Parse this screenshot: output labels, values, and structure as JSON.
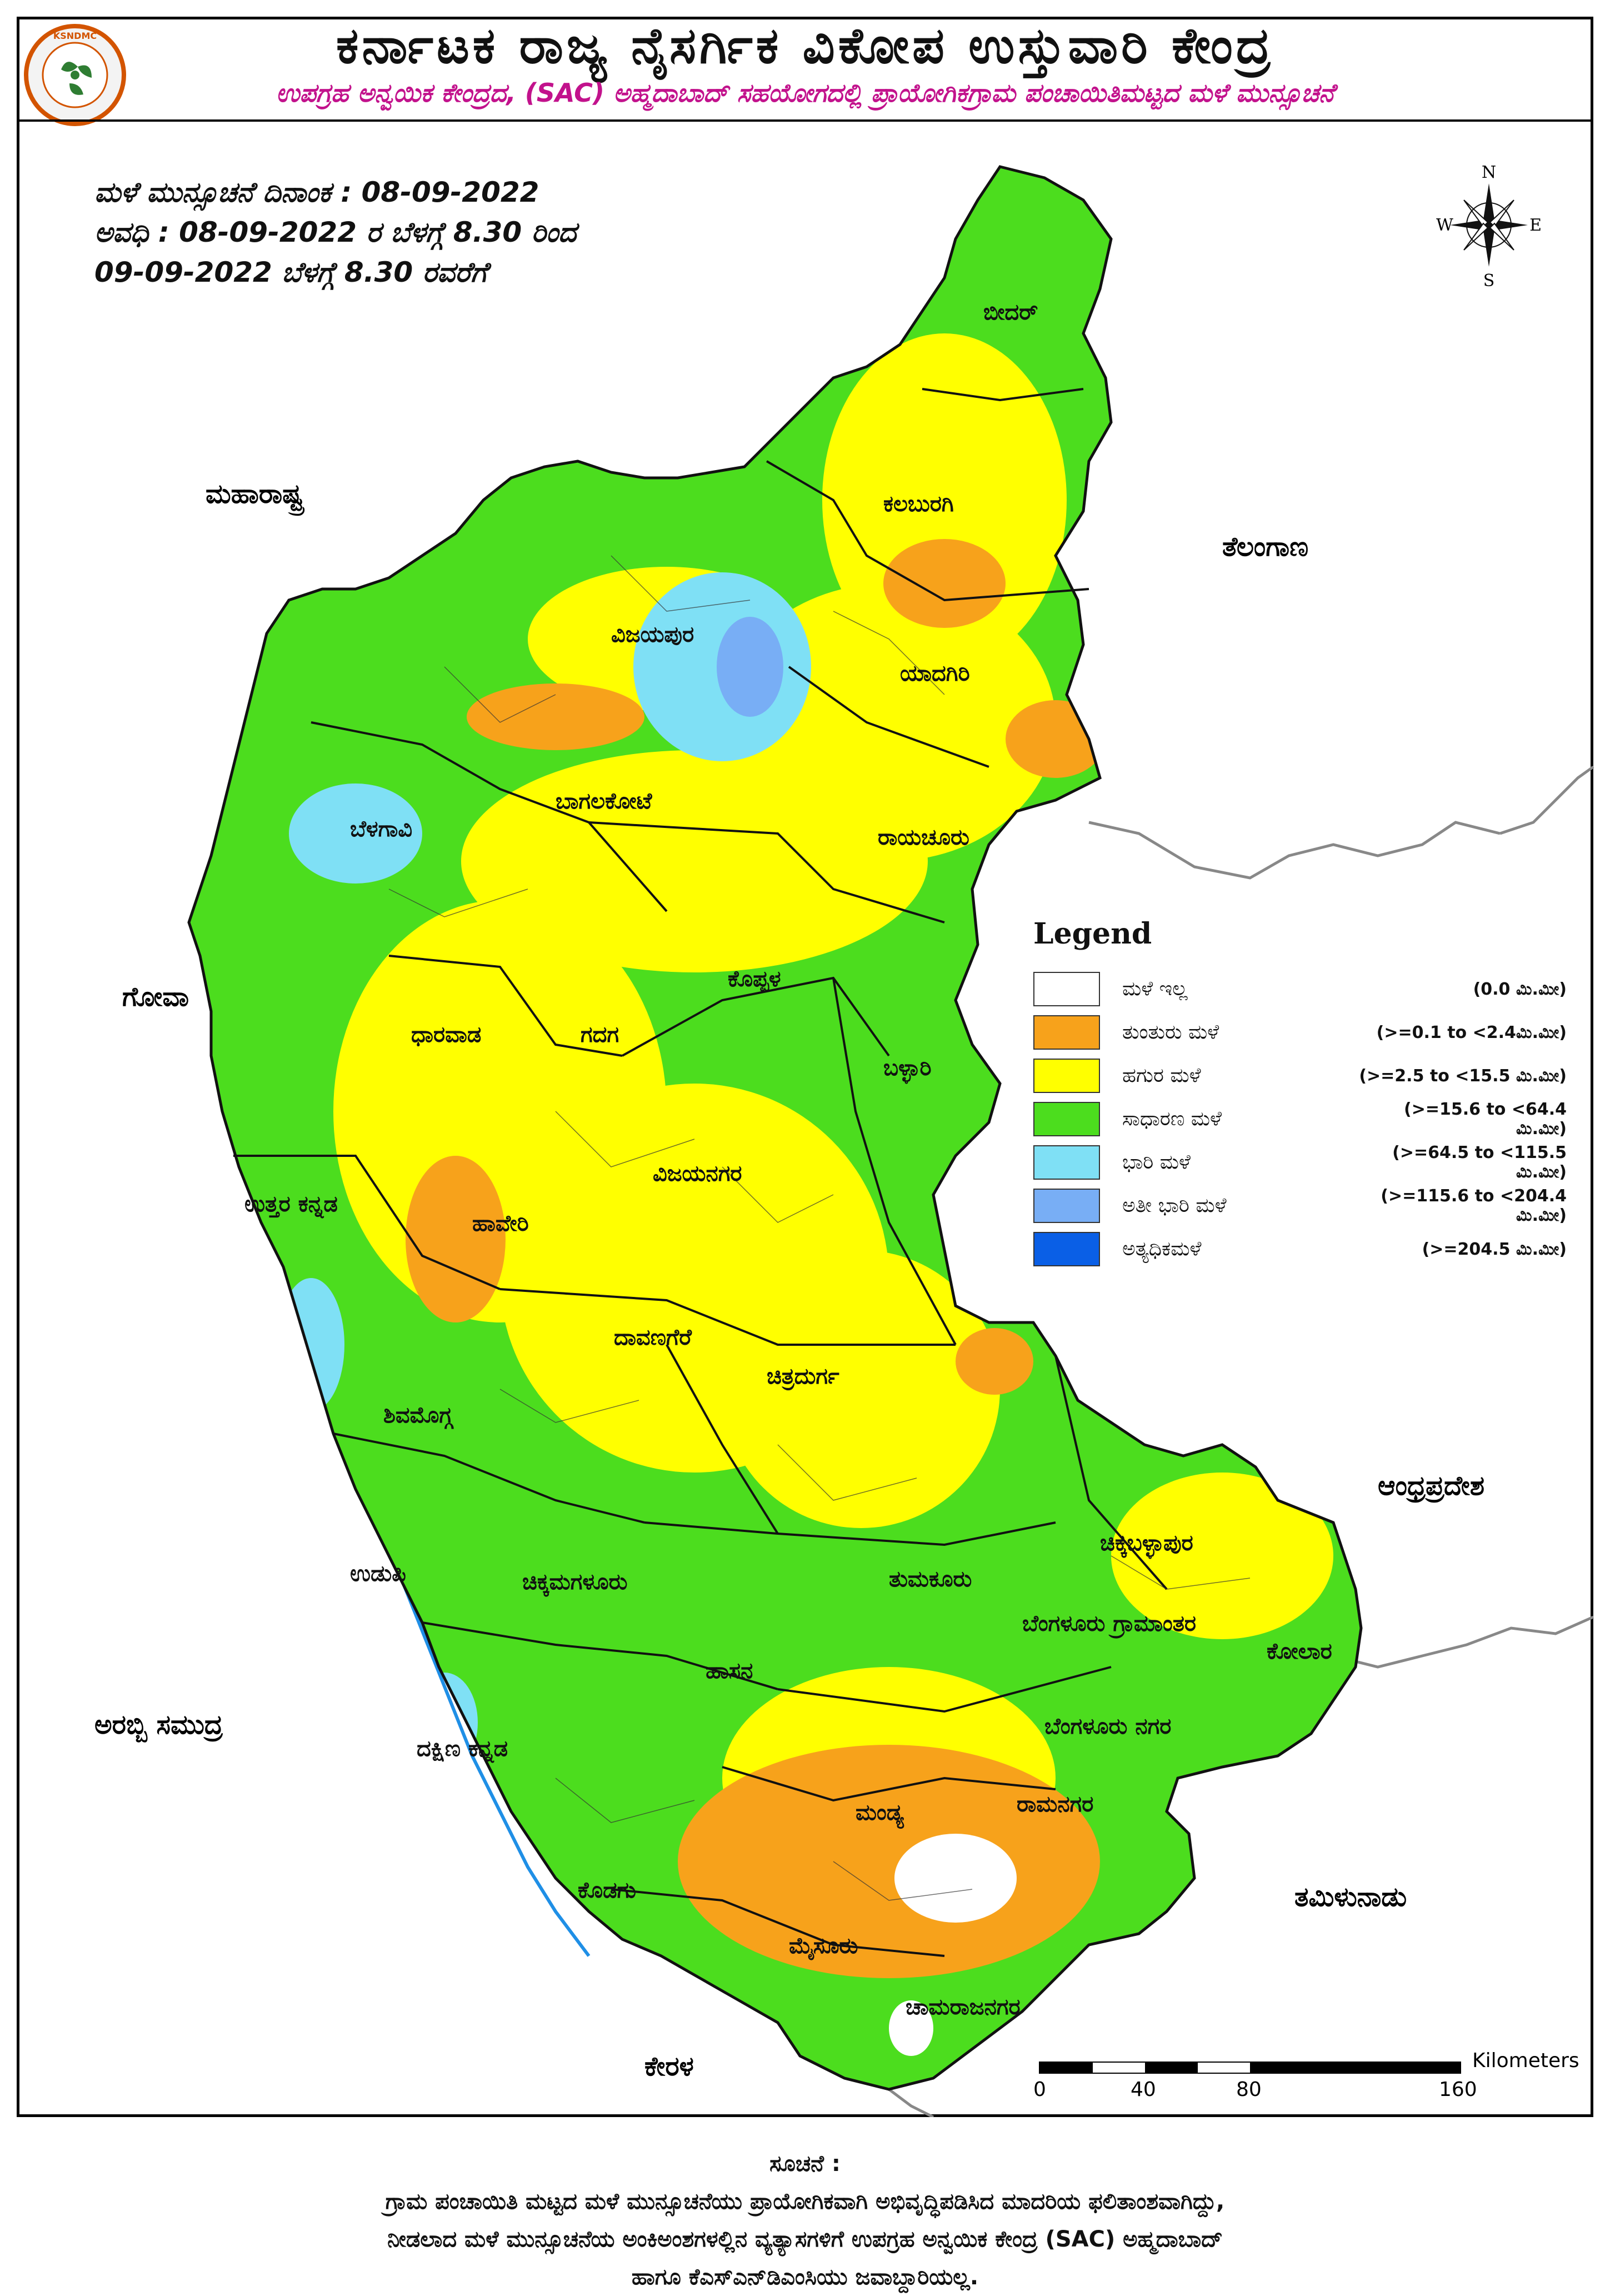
{
  "header": {
    "title": "ಕರ್ನಾಟಕ ರಾಜ್ಯ ನೈಸರ್ಗಿಕ ವಿಕೋಪ ಉಸ್ತುವಾರಿ ಕೇಂದ್ರ",
    "subtitle": "ಉಪಗ್ರಹ ಅನ್ವಯಿಕ ಕೇಂದ್ರದ, (SAC) ಅಹ್ಮದಾಬಾದ್  ಸಹಯೋಗದಲ್ಲಿ  ಪ್ರಾಯೋಗಿಕಗ್ರಾಮ ಪಂಚಾಯಿತಿಮಟ್ಟದ ಮಳೆ ಮುನ್ಸೂಚನೆ",
    "logo_text": "KSNDMC"
  },
  "forecast": {
    "line1": "ಮಳೆ ಮುನ್ಸೂಚನೆ    ದಿನಾಂಕ : 08-09-2022",
    "line2": "ಅವಧಿ : 08-09-2022  ರ ಬೆಳಗ್ಗೆ     8.30  ರಿಂದ",
    "line3": "09-09-2022     ಬೆಳಗ್ಗೆ     8.30  ರವರೆಗೆ"
  },
  "neighbors": {
    "maharashtra": "ಮಹಾರಾಷ್ಟ್ರ",
    "telangana": "ತೆಲಂಗಾಣ",
    "goa": "ಗೋವಾ",
    "andhra": "ಆಂಧ್ರಪ್ರದೇಶ",
    "arabian_sea": "ಅರಬ್ಬಿ  ಸಮುದ್ರ",
    "tamilnadu": "ತಮಿಳುನಾಡು",
    "kerala": "ಕೇರಳ"
  },
  "districts": [
    {
      "name": "ಬೀದರ್"
    },
    {
      "name": "ಕಲಬುರಗಿ"
    },
    {
      "name": "ವಿಜಯಪುರ"
    },
    {
      "name": "ಯಾದಗಿರಿ"
    },
    {
      "name": "ಬಾಗಲಕೋಟೆ"
    },
    {
      "name": "ಬೆಳಗಾವಿ"
    },
    {
      "name": "ರಾಯಚೂರು"
    },
    {
      "name": "ಕೊಪ್ಪಳ"
    },
    {
      "name": "ಧಾರವಾಡ"
    },
    {
      "name": "ಗದಗ"
    },
    {
      "name": "ಬಳ್ಳಾರಿ"
    },
    {
      "name": "ವಿಜಯನಗರ"
    },
    {
      "name": "ಉತ್ತರ  ಕನ್ನಡ"
    },
    {
      "name": "ಹಾವೇರಿ"
    },
    {
      "name": "ದಾವಣಗೆರೆ"
    },
    {
      "name": "ಚಿತ್ರದುರ್ಗ"
    },
    {
      "name": "ಶಿವಮೊಗ್ಗ"
    },
    {
      "name": "ಚಿಕ್ಕಬಳ್ಳಾಪುರ"
    },
    {
      "name": "ಉಡುಪಿ"
    },
    {
      "name": "ಚಿಕ್ಕಮಗಳೂರು"
    },
    {
      "name": "ತುಮಕೂರು"
    },
    {
      "name": "ಬೆಂಗಳೂರು ಗ್ರಾಮಾಂತರ"
    },
    {
      "name": "ಕೋಲಾರ"
    },
    {
      "name": "ಹಾಸನ"
    },
    {
      "name": "ಬೆಂಗಳೂರು ನಗರ"
    },
    {
      "name": "ದಕ್ಷಿಣ ಕನ್ನಡ"
    },
    {
      "name": "ಮಂಡ್ಯ"
    },
    {
      "name": "ರಾಮನಗರ"
    },
    {
      "name": "ಕೊಡಗು"
    },
    {
      "name": "ಮೈಸೂರು"
    },
    {
      "name": "ಚಾಮರಾಜನಗರ"
    }
  ],
  "legend": {
    "title": "Legend",
    "items": [
      {
        "label": "ಮಳೆ ಇಲ್ಲ",
        "range": "(0.0 ಮಿ.ಮೀ)",
        "color": "#ffffff"
      },
      {
        "label": "ತುಂತುರು ಮಳೆ",
        "range": "(>=0.1 to <2.4ಮಿ.ಮೀ)",
        "color": "#f7a21b"
      },
      {
        "label": "ಹಗುರ ಮಳೆ",
        "range": "(>=2.5 to <15.5 ಮಿ.ಮೀ)",
        "color": "#ffff00"
      },
      {
        "label": "ಸಾಧಾರಣ ಮಳೆ",
        "range": "(>=15.6 to <64.4 ಮಿ.ಮೀ)",
        "color": "#4cdd1e"
      },
      {
        "label": "ಭಾರಿ ಮಳೆ",
        "range": "(>=64.5  to <115.5 ಮಿ.ಮೀ)",
        "color": "#7fe0f5"
      },
      {
        "label": "ಅತೀ ಭಾರಿ ಮಳೆ",
        "range": "(>=115.6  to <204.4 ಮಿ.ಮೀ)",
        "color": "#78aef5"
      },
      {
        "label": "ಅತ್ಯಧಿಕಮಳೆ",
        "range": "(>=204.5 ಮಿ.ಮೀ)",
        "color": "#0a5fe6"
      }
    ]
  },
  "scale": {
    "unit": "Kilometers",
    "ticks": [
      "0",
      "40",
      "80",
      "160"
    ]
  },
  "compass": {
    "n": "N",
    "s": "S",
    "e": "E",
    "w": "W"
  },
  "footnote": {
    "heading": "ಸೂಚನೆ :",
    "line1": "ಗ್ರಾಮ ಪಂಚಾಯಿತಿ ಮಟ್ಟದ ಮಳೆ ಮುನ್ಸೂಚನೆಯು ಪ್ರಾಯೋಗಿಕವಾಗಿ ಅಭಿವೃದ್ಧಿಪಡಿಸಿದ ಮಾದರಿಯ ಫಲಿತಾಂಶವಾಗಿದ್ದು,",
    "line2": "ನೀಡಲಾದ ಮಳೆ ಮುನ್ಸೂಚನೆಯ ಅಂಕಿಅಂಶಗಳಲ್ಲಿನ ವ್ಯತ್ಯಾಸಗಳಿಗೆ ಉಪಗ್ರಹ ಅನ್ವಯಿಕ ಕೇಂದ್ರ (SAC) ಅಹ್ಮದಾಬಾದ್",
    "line3": "ಹಾಗೂ ಕೆಎಸ್‌ಎನ್‌ಡಿಎಂಸಿಯು         ಜವಾಬ್ದಾರಿಯಲ್ಲ."
  }
}
